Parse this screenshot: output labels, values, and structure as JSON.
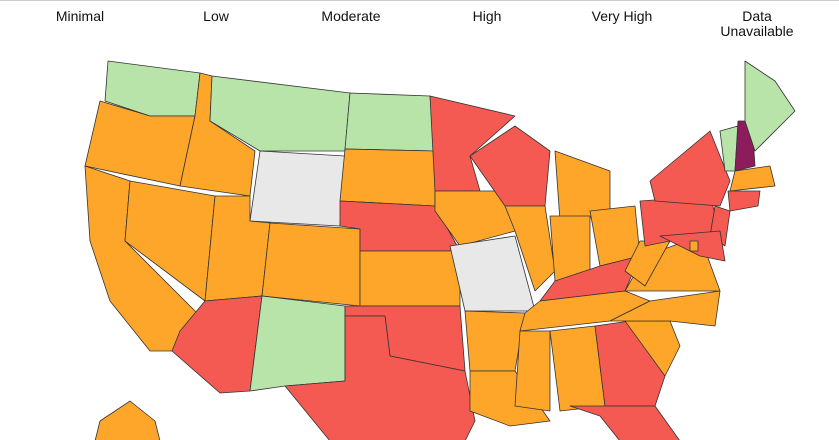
{
  "legend": [
    {
      "label": "Minimal",
      "color": "#b8e4aa"
    },
    {
      "label": "Low",
      "color": "#f4ef9c"
    },
    {
      "label": "Moderate",
      "color": "#fea62a"
    },
    {
      "label": "High",
      "color": "#f45a52"
    },
    {
      "label": "Very High",
      "color": "#8c1c5c"
    },
    {
      "label": "Data\nUnavailable",
      "color": "#e8e8e8"
    }
  ],
  "regions": [
    {
      "level": 0
    },
    {
      "level": 2
    },
    {
      "level": 2
    },
    {
      "level": 2
    },
    {
      "level": 2
    },
    {
      "level": 0
    },
    {
      "level": 5
    },
    {
      "level": 2
    },
    {
      "level": 3
    },
    {
      "level": 2
    },
    {
      "level": 0
    },
    {
      "level": 0
    },
    {
      "level": 2
    },
    {
      "level": 3
    },
    {
      "level": 2
    },
    {
      "level": 3
    },
    {
      "level": 3
    },
    {
      "level": 3
    },
    {
      "level": 2
    },
    {
      "level": 5
    },
    {
      "level": 2
    },
    {
      "level": 2
    },
    {
      "level": 3
    },
    {
      "level": 2
    },
    {
      "level": 2
    },
    {
      "level": 2
    },
    {
      "level": 2
    },
    {
      "level": 3
    },
    {
      "level": 2
    },
    {
      "level": 2
    },
    {
      "level": 2
    },
    {
      "level": 3
    },
    {
      "level": 3
    },
    {
      "level": 2
    },
    {
      "level": 2
    },
    {
      "level": 2
    },
    {
      "level": 2
    },
    {
      "level": 3
    },
    {
      "level": 3
    },
    {
      "level": 3
    },
    {
      "level": 3
    },
    {
      "level": 0
    },
    {
      "level": 4
    },
    {
      "level": 0
    },
    {
      "level": 2
    },
    {
      "level": 3
    },
    {
      "level": 2
    },
    {
      "level": 2
    }
  ]
}
